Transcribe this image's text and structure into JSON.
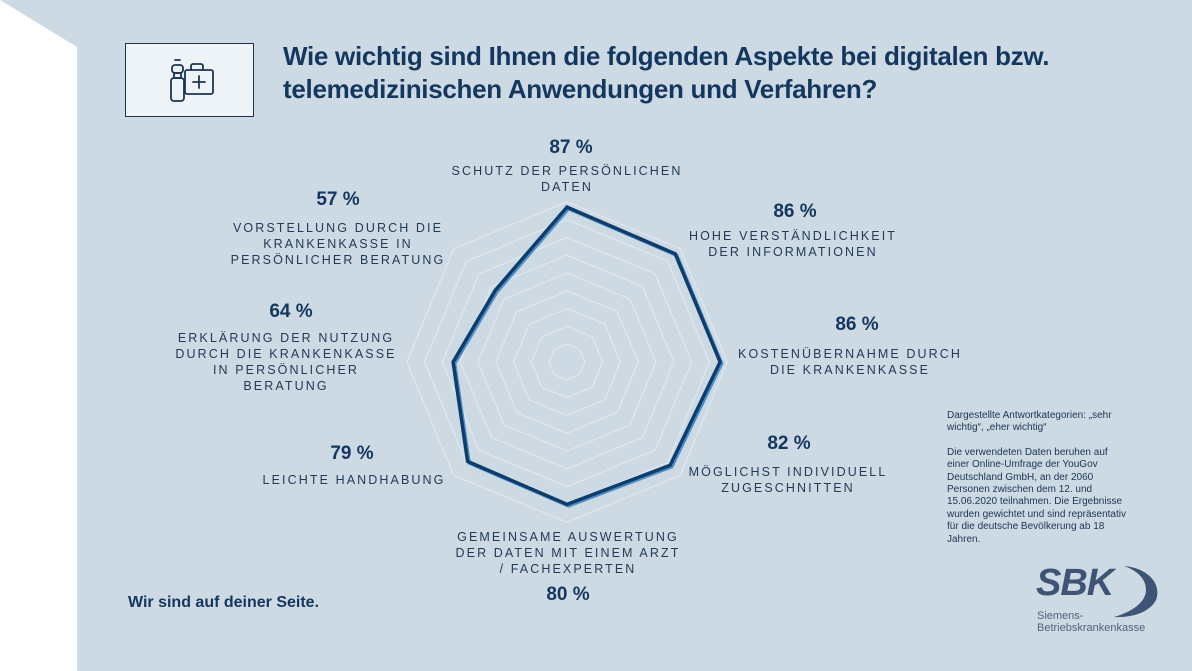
{
  "title": "Wie wichtig sind Ihnen die folgenden Aspekte bei digitalen bzw. telemedizinischen Anwendungen und Verfahren?",
  "icon": "medical-kit-and-bottle-icon",
  "tagline": "Wir sind auf deiner Seite.",
  "notes": {
    "categories": "Dargestellte Antwortkategorien: „sehr wichtig“, „eher wichtig“",
    "source": "Die verwendeten Daten beruhen auf einer Online-Umfrage der YouGov Deutschland GmbH, an der 2060 Personen zwischen dem 12. und 15.06.2020 teilnahmen. Die Ergebnisse wurden gewichtet und sind repräsentativ für die deutsche Bevölkerung ab 18 Jahren."
  },
  "logo": {
    "mark": "SBK",
    "line1": "Siemens-",
    "line2": "Betriebskrankenkasse"
  },
  "colors": {
    "background": "#cdd9e3",
    "series_line": "#0f3d6b",
    "series_shadow": "#4d8fc9",
    "grid": "#dfe8ef",
    "text": "#14375f"
  },
  "chart_data": {
    "type": "radar",
    "title": "Wie wichtig sind Ihnen die folgenden Aspekte bei digitalen bzw. telemedizinischen Anwendungen und Verfahren?",
    "axis_order": "clockwise from top",
    "range": [
      0,
      100
    ],
    "grid_rings": [
      10,
      20,
      30,
      40,
      50,
      60,
      70,
      80,
      90
    ],
    "grid": true,
    "categories": [
      "SCHUTZ DER PERSÖNLICHEN DATEN",
      "HOHE VERSTÄNDLICHKEIT DER INFORMATIONEN",
      "KOSTENÜBERNAHME DURCH DIE KRANKENKASSE",
      "MÖGLICHST INDIVIDUELL ZUGESCHNITTEN",
      "GEMEINSAME AUSWERTUNG DER DATEN MIT EINEM ARZT / FACHEXPERTEN",
      "LEICHTE HANDHABUNG",
      "ERKLÄRUNG DER NUTZUNG DURCH DIE KRANKENKASSE IN PERSÖNLICHER BERATUNG",
      "VORSTELLUNG DURCH DIE KRANKENKASSE IN PERSÖNLICHER BERATUNG"
    ],
    "label_lines": [
      [
        "SCHUTZ DER PERSÖNLICHEN",
        "DATEN"
      ],
      [
        "HOHE VERSTÄNDLICHKEIT",
        "DER INFORMATIONEN"
      ],
      [
        "KOSTENÜBERNAHME DURCH",
        "DIE KRANKENKASSE"
      ],
      [
        "MÖGLICHST INDIVIDUELL",
        "ZUGESCHNITTEN"
      ],
      [
        "GEMEINSAME AUSWERTUNG",
        "DER DATEN MIT EINEM ARZT",
        "/ FACHEXPERTEN"
      ],
      [
        "LEICHTE HANDHABUNG"
      ],
      [
        "ERKLÄRUNG DER NUTZUNG",
        "DURCH DIE KRANKENKASSE",
        "IN PERSÖNLICHER",
        "BERATUNG"
      ],
      [
        "VORSTELLUNG DURCH DIE",
        "KRANKENKASSE IN",
        "PERSÖNLICHER BERATUNG"
      ]
    ],
    "series": [
      {
        "name": "sehr wichtig + eher wichtig",
        "values": [
          87,
          86,
          86,
          82,
          80,
          79,
          64,
          57
        ]
      }
    ],
    "data_labels": [
      "87 %",
      "86 %",
      "86 %",
      "82 %",
      "80 %",
      "79 %",
      "64 %",
      "57 %"
    ]
  }
}
